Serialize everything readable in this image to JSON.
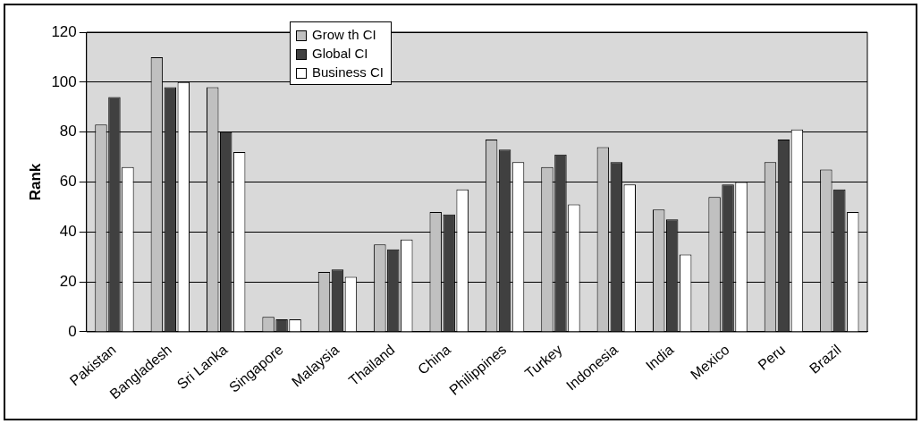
{
  "chart_data": {
    "type": "bar",
    "ylabel": "Rank",
    "categories": [
      "Pakistan",
      "Bangladesh",
      "Sri Lanka",
      "Singapore",
      "Malaysia",
      "Thailand",
      "China",
      "Philippines",
      "Turkey",
      "Indonesia",
      "India",
      "Mexico",
      "Peru",
      "Brazil"
    ],
    "series": [
      {
        "name": "Grow th CI",
        "color": "#c0c0c0",
        "values": [
          83,
          110,
          98,
          6,
          24,
          35,
          48,
          77,
          66,
          74,
          49,
          54,
          68,
          65
        ]
      },
      {
        "name": "Global CI",
        "color": "#404040",
        "values": [
          94,
          98,
          80,
          5,
          25,
          33,
          47,
          73,
          71,
          68,
          45,
          59,
          77,
          57
        ]
      },
      {
        "name": "Business CI",
        "color": "#ffffff",
        "values": [
          66,
          100,
          72,
          5,
          22,
          37,
          57,
          68,
          51,
          59,
          31,
          60,
          81,
          48
        ]
      }
    ],
    "ylim": [
      0,
      120
    ],
    "yticks": [
      0,
      20,
      40,
      60,
      80,
      100,
      120
    ],
    "grid": "y",
    "legend": "top"
  }
}
